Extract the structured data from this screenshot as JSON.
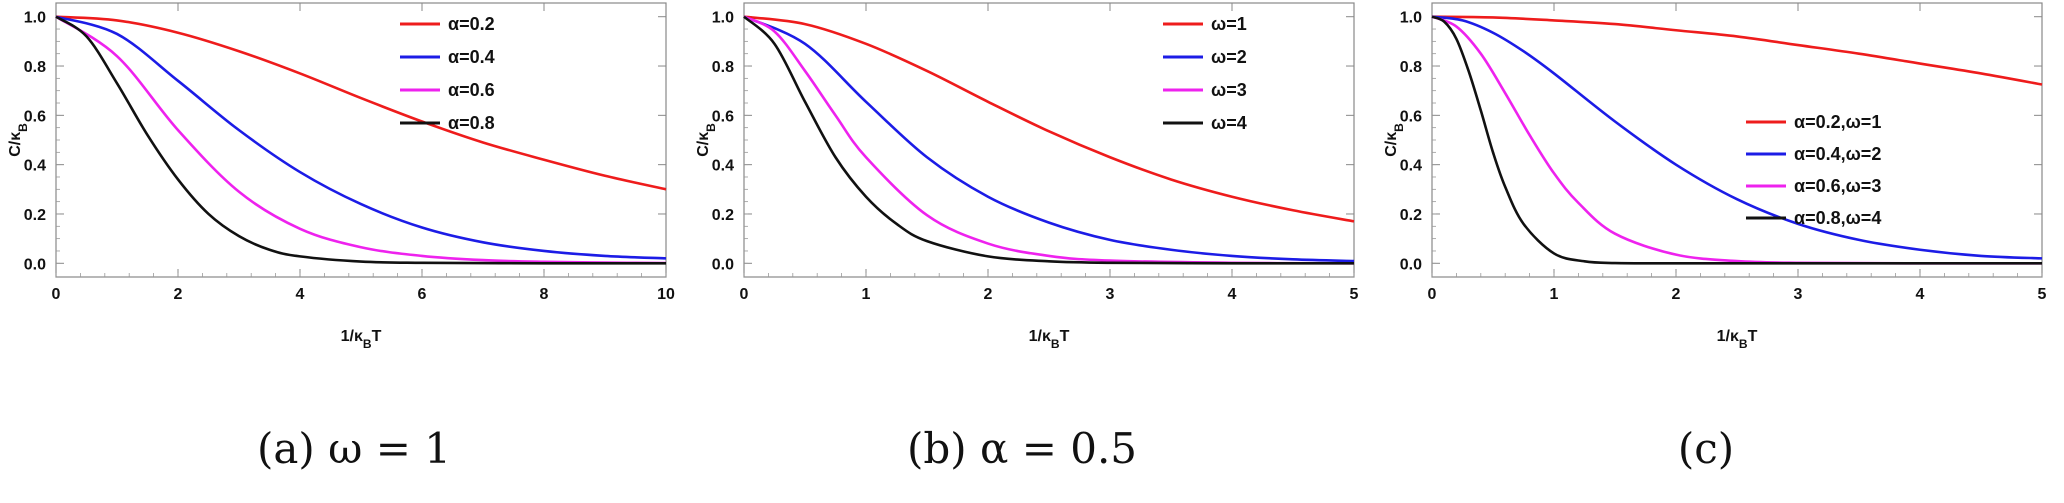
{
  "figure": {
    "panels": [
      {
        "caption": "(a) ω = 1"
      },
      {
        "caption": "(b) α = 0.5"
      },
      {
        "caption": "(c)"
      }
    ]
  },
  "chart_data": [
    {
      "type": "line",
      "xlabel": "1/κBT",
      "ylabel": "C/κB",
      "xlim": [
        0,
        10
      ],
      "ylim": [
        0,
        1
      ],
      "xticks": [
        0,
        2,
        4,
        6,
        8,
        10
      ],
      "yticks": [
        0.0,
        0.2,
        0.4,
        0.6,
        0.8,
        1.0
      ],
      "ytick_labels": [
        "0.0",
        "0.2",
        "0.4",
        "0.6",
        "0.8",
        "1.0"
      ],
      "grid": false,
      "legend_position": "top-right",
      "series": [
        {
          "name": "α=0.2",
          "color": "#ee1c1c",
          "x": [
            0,
            1,
            2,
            3,
            4,
            5,
            6,
            7,
            8,
            9,
            10
          ],
          "y": [
            1.0,
            0.985,
            0.935,
            0.86,
            0.77,
            0.67,
            0.575,
            0.49,
            0.42,
            0.355,
            0.3
          ]
        },
        {
          "name": "α=0.4",
          "color": "#1c1ce6",
          "x": [
            0,
            1,
            2,
            3,
            4,
            5,
            6,
            7,
            8,
            9,
            10
          ],
          "y": [
            1.0,
            0.93,
            0.74,
            0.54,
            0.37,
            0.24,
            0.145,
            0.085,
            0.05,
            0.03,
            0.02
          ]
        },
        {
          "name": "α=0.6",
          "color": "#ee22ee",
          "x": [
            0,
            1,
            2,
            3,
            4,
            5,
            6,
            7,
            8,
            9,
            10
          ],
          "y": [
            1.0,
            0.84,
            0.54,
            0.29,
            0.14,
            0.065,
            0.03,
            0.013,
            0.006,
            0.003,
            0.001
          ]
        },
        {
          "name": "α=0.8",
          "color": "#111111",
          "x": [
            0,
            0.5,
            1,
            1.5,
            2,
            2.5,
            3,
            3.5,
            4,
            5,
            6,
            8,
            10
          ],
          "y": [
            1.0,
            0.92,
            0.73,
            0.52,
            0.34,
            0.2,
            0.11,
            0.055,
            0.028,
            0.007,
            0.002,
            0.0,
            0.0
          ]
        }
      ]
    },
    {
      "type": "line",
      "xlabel": "1/κBT",
      "ylabel": "C/κB",
      "xlim": [
        0,
        5
      ],
      "ylim": [
        0,
        1
      ],
      "xticks": [
        0,
        1,
        2,
        3,
        4,
        5
      ],
      "yticks": [
        0.0,
        0.2,
        0.4,
        0.6,
        0.8,
        1.0
      ],
      "ytick_labels": [
        "0.0",
        "0.2",
        "0.4",
        "0.6",
        "0.8",
        "1.0"
      ],
      "grid": false,
      "legend_position": "top-right",
      "series": [
        {
          "name": "ω=1",
          "color": "#ee1c1c",
          "x": [
            0,
            0.5,
            1,
            1.5,
            2,
            2.5,
            3,
            3.5,
            4,
            4.5,
            5
          ],
          "y": [
            1.0,
            0.97,
            0.89,
            0.78,
            0.655,
            0.535,
            0.43,
            0.34,
            0.27,
            0.215,
            0.17
          ]
        },
        {
          "name": "ω=2",
          "color": "#1c1ce6",
          "x": [
            0,
            0.5,
            1,
            1.5,
            2,
            2.5,
            3,
            3.5,
            4,
            4.5,
            5
          ],
          "y": [
            1.0,
            0.89,
            0.655,
            0.43,
            0.27,
            0.165,
            0.095,
            0.055,
            0.03,
            0.016,
            0.009
          ]
        },
        {
          "name": "ω=3",
          "color": "#ee22ee",
          "x": [
            0,
            0.25,
            0.5,
            0.75,
            1,
            1.5,
            2,
            2.5,
            3,
            4,
            5
          ],
          "y": [
            1.0,
            0.94,
            0.78,
            0.6,
            0.43,
            0.195,
            0.08,
            0.03,
            0.011,
            0.002,
            0.0
          ]
        },
        {
          "name": "ω=4",
          "color": "#111111",
          "x": [
            0,
            0.25,
            0.5,
            0.75,
            1,
            1.25,
            1.5,
            2,
            2.5,
            3,
            4,
            5
          ],
          "y": [
            1.0,
            0.89,
            0.655,
            0.43,
            0.27,
            0.16,
            0.09,
            0.028,
            0.008,
            0.002,
            0.0,
            0.0
          ]
        }
      ]
    },
    {
      "type": "line",
      "xlabel": "1/κBT",
      "ylabel": "C/κB",
      "xlim": [
        0,
        5
      ],
      "ylim": [
        0,
        1
      ],
      "xticks": [
        0,
        1,
        2,
        3,
        4,
        5
      ],
      "yticks": [
        0.0,
        0.2,
        0.4,
        0.6,
        0.8,
        1.0
      ],
      "ytick_labels": [
        "0.0",
        "0.2",
        "0.4",
        "0.6",
        "0.8",
        "1.0"
      ],
      "grid": false,
      "legend_position": "right",
      "series": [
        {
          "name": "α=0.2,ω=1",
          "color": "#ee1c1c",
          "x": [
            0,
            0.5,
            1,
            1.5,
            2,
            2.5,
            3,
            3.5,
            4,
            4.5,
            5
          ],
          "y": [
            1.0,
            0.997,
            0.985,
            0.97,
            0.945,
            0.92,
            0.885,
            0.85,
            0.81,
            0.77,
            0.725
          ]
        },
        {
          "name": "α=0.4,ω=2",
          "color": "#1c1ce6",
          "x": [
            0,
            0.25,
            0.5,
            0.75,
            1,
            1.5,
            2,
            2.5,
            3,
            3.5,
            4,
            4.5,
            5
          ],
          "y": [
            1.0,
            0.985,
            0.935,
            0.86,
            0.77,
            0.575,
            0.4,
            0.26,
            0.16,
            0.095,
            0.055,
            0.03,
            0.02
          ]
        },
        {
          "name": "α=0.6,ω=3",
          "color": "#ee22ee",
          "x": [
            0,
            0.2,
            0.4,
            0.6,
            0.8,
            1,
            1.2,
            1.5,
            2,
            2.5,
            3,
            4,
            5
          ],
          "y": [
            1.0,
            0.96,
            0.85,
            0.69,
            0.52,
            0.365,
            0.245,
            0.12,
            0.035,
            0.009,
            0.002,
            0.0,
            0.0
          ]
        },
        {
          "name": "α=0.8,ω=4",
          "color": "#111111",
          "x": [
            0,
            0.1,
            0.2,
            0.3,
            0.4,
            0.5,
            0.6,
            0.75,
            1,
            1.25,
            1.5,
            2,
            3,
            5
          ],
          "y": [
            1.0,
            0.98,
            0.91,
            0.78,
            0.62,
            0.45,
            0.31,
            0.16,
            0.04,
            0.008,
            0.001,
            0.0,
            0.0,
            0.0
          ]
        }
      ]
    }
  ]
}
